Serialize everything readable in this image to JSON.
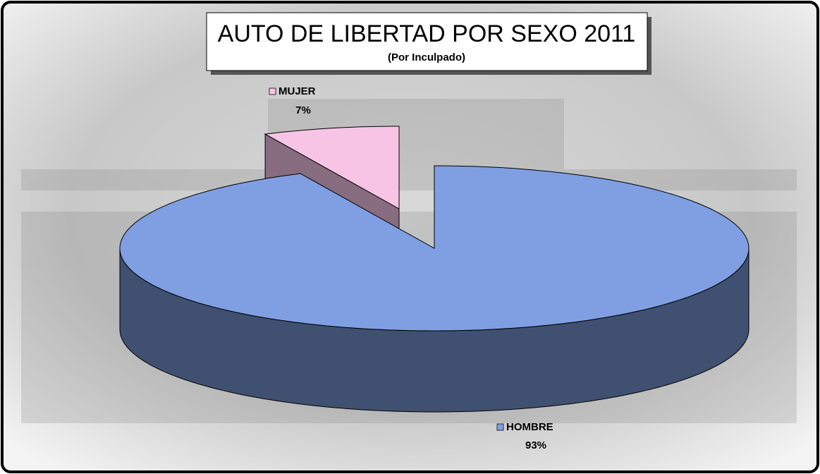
{
  "chart_data": {
    "type": "pie3d",
    "title": "AUTO DE LIBERTAD POR SEXO 2011",
    "subtitle": "(Por Inculpado)",
    "categories": [
      "HOMBRE",
      "MUJER"
    ],
    "values": [
      93,
      7
    ],
    "value_labels": [
      "93%",
      "7%"
    ],
    "colors": [
      "#7f9fe2",
      "#f7c4e6"
    ]
  }
}
